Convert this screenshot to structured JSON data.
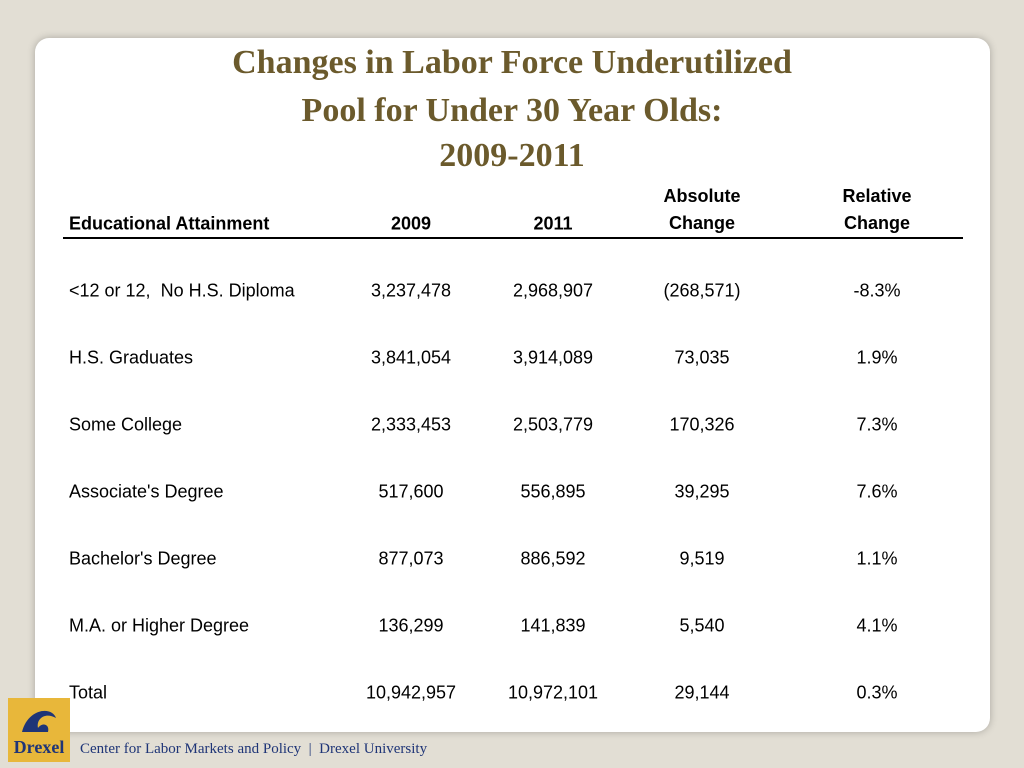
{
  "header": {
    "title": [
      "Changes in Labor Force Underutilized",
      "Pool for Under 30 Year Olds:",
      "2009-2011"
    ]
  },
  "table": {
    "columns": [
      "Educational Attainment",
      "2009",
      "2011",
      "Absolute Change",
      "Relative Change"
    ],
    "rows": [
      [
        "<12 or 12,  No H.S. Diploma",
        "3,237,478",
        "2,968,907",
        "(268,571)",
        "-8.3%"
      ],
      [
        "H.S. Graduates",
        "3,841,054",
        "3,914,089",
        "73,035",
        "1.9%"
      ],
      [
        "Some College",
        "2,333,453",
        "2,503,779",
        "170,326",
        "7.3%"
      ],
      [
        "Associate's Degree",
        "517,600",
        "556,895",
        "39,295",
        "7.6%"
      ],
      [
        "Bachelor's Degree",
        "877,073",
        "886,592",
        "9,519",
        "1.1%"
      ],
      [
        "M.A. or Higher Degree",
        "136,299",
        "141,839",
        "5,540",
        "4.1%"
      ],
      [
        "Total",
        "10,942,957",
        "10,972,101",
        "29,144",
        "0.3%"
      ]
    ]
  },
  "footer": {
    "logo": "Drexel",
    "text": "Center for Labor Markets and Policy  |  Drexel University"
  }
}
